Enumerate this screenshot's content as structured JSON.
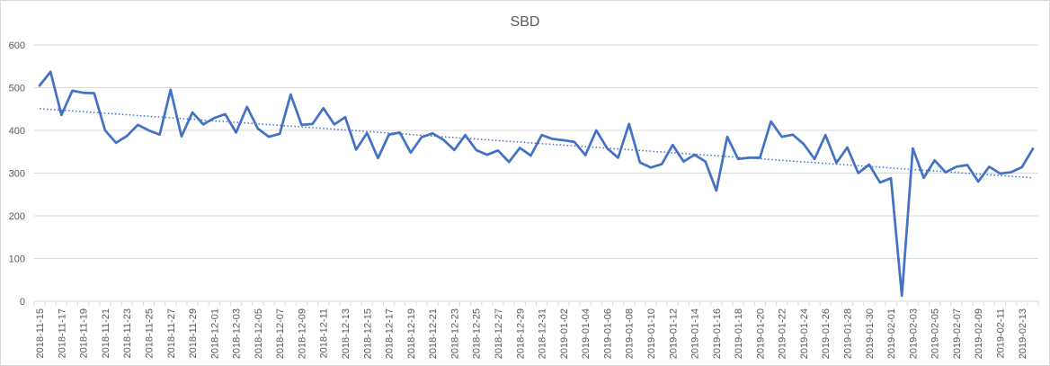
{
  "chart_data": {
    "type": "line",
    "title": "SBD",
    "xlabel": "",
    "ylabel": "",
    "ylim": [
      0,
      600
    ],
    "yticks": [
      0,
      100,
      200,
      300,
      400,
      500,
      600
    ],
    "grid": true,
    "legend": "none",
    "x": [
      "2018-11-15",
      "2018-11-16",
      "2018-11-17",
      "2018-11-18",
      "2018-11-19",
      "2018-11-20",
      "2018-11-21",
      "2018-11-22",
      "2018-11-23",
      "2018-11-24",
      "2018-11-25",
      "2018-11-26",
      "2018-11-27",
      "2018-11-28",
      "2018-11-29",
      "2018-11-30",
      "2018-12-01",
      "2018-12-02",
      "2018-12-03",
      "2018-12-04",
      "2018-12-05",
      "2018-12-06",
      "2018-12-07",
      "2018-12-08",
      "2018-12-09",
      "2018-12-10",
      "2018-12-11",
      "2018-12-12",
      "2018-12-13",
      "2018-12-14",
      "2018-12-15",
      "2018-12-16",
      "2018-12-17",
      "2018-12-18",
      "2018-12-19",
      "2018-12-20",
      "2018-12-21",
      "2018-12-22",
      "2018-12-23",
      "2018-12-24",
      "2018-12-25",
      "2018-12-26",
      "2018-12-27",
      "2018-12-28",
      "2018-12-29",
      "2018-12-30",
      "2018-12-31",
      "2019-01-01",
      "2019-01-02",
      "2019-01-03",
      "2019-01-04",
      "2019-01-05",
      "2019-01-06",
      "2019-01-07",
      "2019-01-08",
      "2019-01-09",
      "2019-01-10",
      "2019-01-11",
      "2019-01-12",
      "2019-01-13",
      "2019-01-14",
      "2019-01-15",
      "2019-01-16",
      "2019-01-17",
      "2019-01-18",
      "2019-01-19",
      "2019-01-20",
      "2019-01-21",
      "2019-01-22",
      "2019-01-23",
      "2019-01-24",
      "2019-01-25",
      "2019-01-26",
      "2019-01-27",
      "2019-01-28",
      "2019-01-29",
      "2019-01-30",
      "2019-01-31",
      "2019-02-01",
      "2019-02-02",
      "2019-02-03",
      "2019-02-04",
      "2019-02-05",
      "2019-02-06",
      "2019-02-07",
      "2019-02-08",
      "2019-02-09",
      "2019-02-10",
      "2019-02-11",
      "2019-02-12",
      "2019-02-13",
      "2019-02-14"
    ],
    "xticks_shown": [
      "2018-11-15",
      "2018-11-17",
      "2018-11-19",
      "2018-11-21",
      "2018-11-23",
      "2018-11-25",
      "2018-11-27",
      "2018-11-29",
      "2018-12-01",
      "2018-12-03",
      "2018-12-05",
      "2018-12-07",
      "2018-12-09",
      "2018-12-11",
      "2018-12-13",
      "2018-12-15",
      "2018-12-17",
      "2018-12-19",
      "2018-12-21",
      "2018-12-23",
      "2018-12-25",
      "2018-12-27",
      "2018-12-29",
      "2018-12-31",
      "2019-01-02",
      "2019-01-04",
      "2019-01-06",
      "2019-01-08",
      "2019-01-10",
      "2019-01-12",
      "2019-01-14",
      "2019-01-16",
      "2019-01-18",
      "2019-01-20",
      "2019-01-22",
      "2019-01-24",
      "2019-01-26",
      "2019-01-28",
      "2019-01-30",
      "2019-02-01",
      "2019-02-03",
      "2019-02-05",
      "2019-02-07",
      "2019-02-09",
      "2019-02-11",
      "2019-02-13"
    ],
    "series": [
      {
        "color": "#4472c4",
        "values": [
          505,
          537,
          436,
          493,
          488,
          487,
          400,
          371,
          387,
          413,
          400,
          390,
          495,
          386,
          442,
          414,
          429,
          438,
          395,
          455,
          404,
          385,
          392,
          484,
          413,
          415,
          452,
          414,
          431,
          355,
          394,
          335,
          390,
          395,
          348,
          384,
          393,
          378,
          354,
          389,
          354,
          343,
          353,
          326,
          359,
          341,
          389,
          380,
          377,
          373,
          342,
          400,
          358,
          336,
          415,
          325,
          313,
          321,
          366,
          327,
          343,
          327,
          259,
          385,
          333,
          336,
          336,
          421,
          385,
          390,
          368,
          333,
          389,
          324,
          360,
          300,
          320,
          278,
          288,
          13,
          358,
          289,
          330,
          302,
          315,
          319,
          280,
          315,
          299,
          302,
          314,
          357
        ]
      }
    ],
    "trendline": {
      "style": "dotted-linear",
      "color": "#4472c4"
    }
  }
}
